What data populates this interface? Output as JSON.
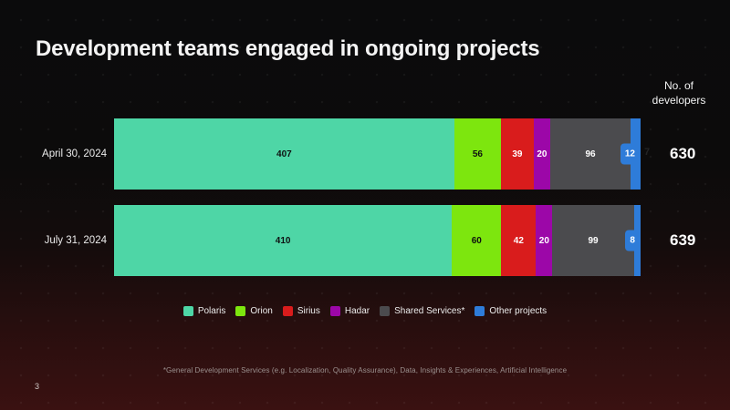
{
  "slide": {
    "title": "Development teams engaged in ongoing projects",
    "page_number": "3",
    "footnote": "*General Development Services (e.g. Localization, Quality Assurance), Data, Insights & Experiences, Artificial Intelligence",
    "stray_mark": "7",
    "background": {
      "top_color": "#0b0b0c",
      "bottom_color": "#3a1111"
    }
  },
  "chart_data": {
    "type": "bar",
    "variant": "horizontal-stacked-proportional",
    "title": "Development teams engaged in ongoing projects",
    "totals_label": "No. of developers",
    "categories": [
      "April 30, 2024",
      "July 31, 2024"
    ],
    "series": [
      {
        "name": "Polaris",
        "color": "#4ED6A6",
        "label_color": "#0e1111",
        "values": [
          407,
          410
        ]
      },
      {
        "name": "Orion",
        "color": "#7DE60E",
        "label_color": "#0e1111",
        "values": [
          56,
          60
        ]
      },
      {
        "name": "Sirius",
        "color": "#D91C1C",
        "label_color": "#ffffff",
        "values": [
          39,
          42
        ]
      },
      {
        "name": "Hadar",
        "color": "#9C07A8",
        "label_color": "#ffffff",
        "values": [
          20,
          20
        ]
      },
      {
        "name": "Shared Services*",
        "color": "#4B4B4E",
        "label_color": "#ffffff",
        "values": [
          96,
          99
        ]
      },
      {
        "name": "Other projects",
        "color": "#2E7CD9",
        "label_color": "#ffffff",
        "label_pill": true,
        "values": [
          12,
          8
        ]
      }
    ],
    "totals": [
      630,
      639
    ],
    "legend_position": "bottom",
    "grid": false
  }
}
